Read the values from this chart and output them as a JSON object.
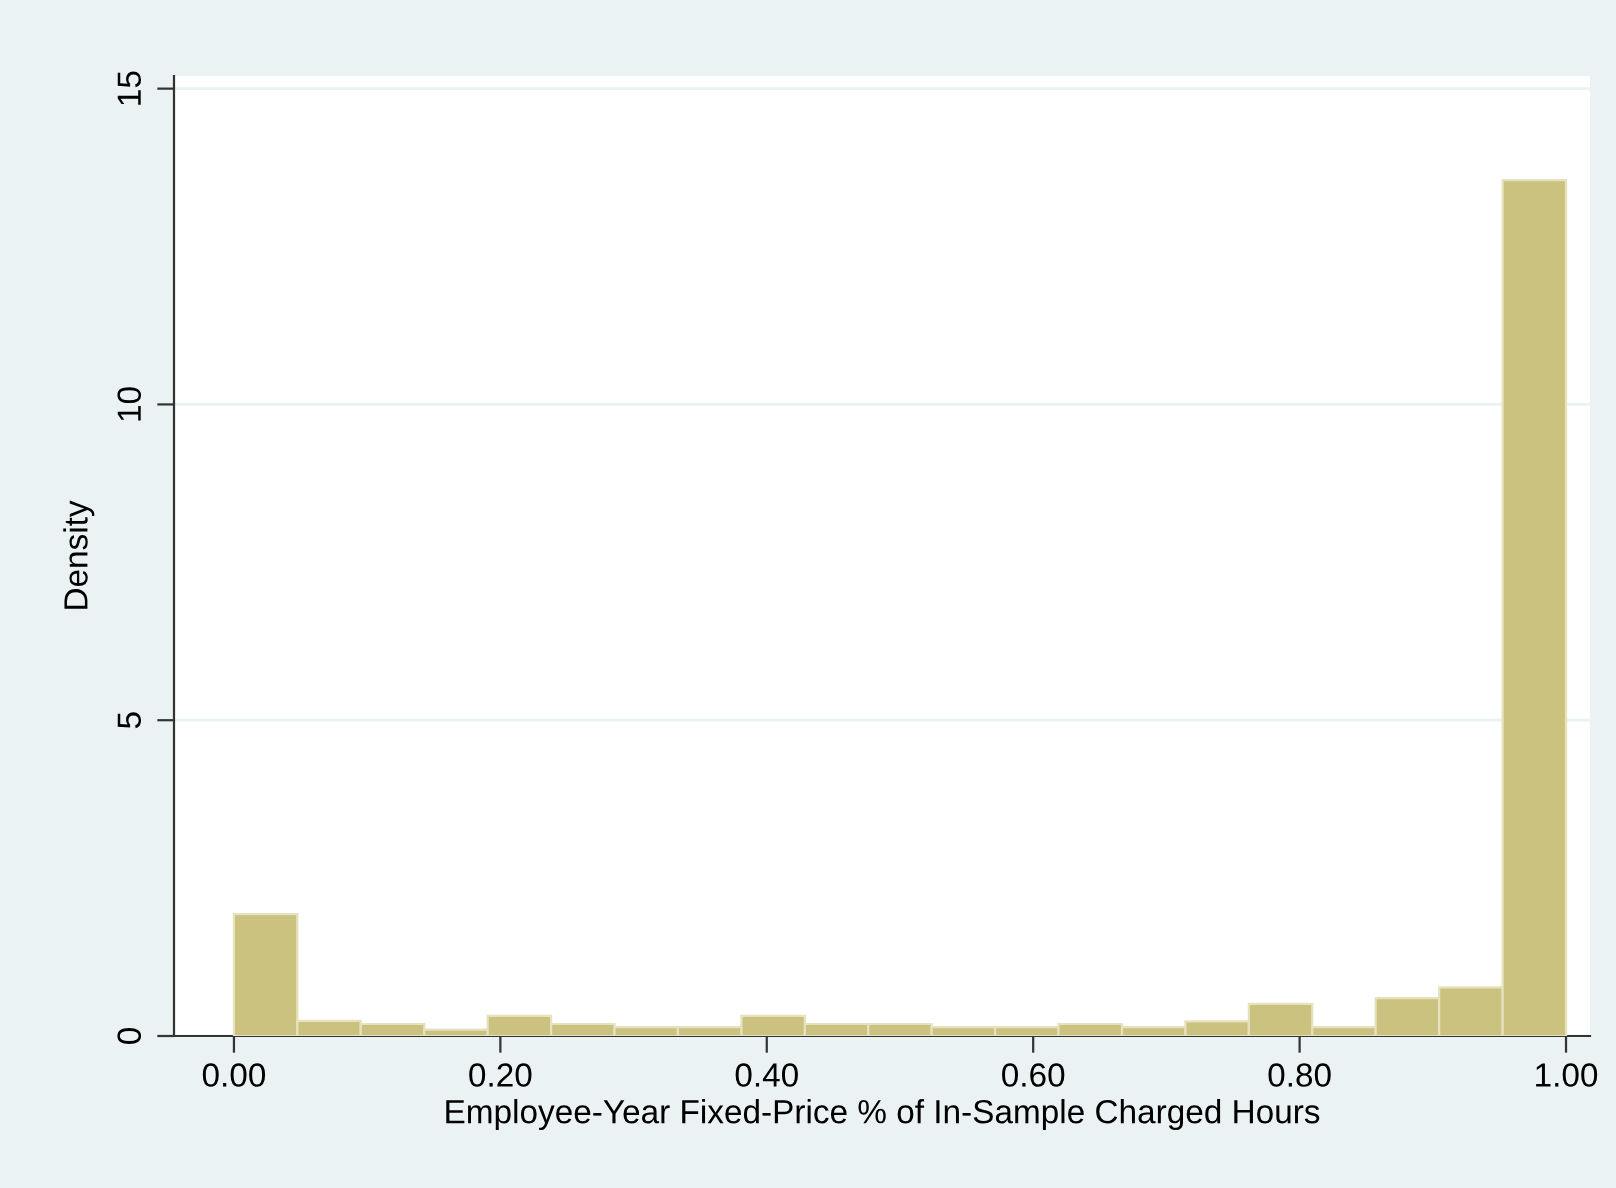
{
  "chart_data": {
    "type": "histogram",
    "xlabel": "Employee-Year Fixed-Price % of In-Sample Charged Hours",
    "ylabel": "Density",
    "bins": [
      0,
      0.0476,
      0.0952,
      0.1429,
      0.1905,
      0.2381,
      0.2857,
      0.3333,
      0.381,
      0.4286,
      0.4762,
      0.5238,
      0.5714,
      0.619,
      0.6667,
      0.7143,
      0.7619,
      0.8095,
      0.8571,
      0.9048,
      0.9524,
      1
    ],
    "values": [
      1.93,
      0.24,
      0.19,
      0.1,
      0.32,
      0.19,
      0.14,
      0.14,
      0.32,
      0.19,
      0.19,
      0.14,
      0.14,
      0.19,
      0.14,
      0.23,
      0.51,
      0.14,
      0.6,
      0.77,
      13.55
    ],
    "color": "#cac27e",
    "xlim": [
      -0.045,
      1.018
    ],
    "ylim": [
      0,
      15.2
    ],
    "xticks": [
      {
        "value": 0,
        "label": "0.00"
      },
      {
        "value": 0.2,
        "label": "0.20"
      },
      {
        "value": 0.4,
        "label": "0.40"
      },
      {
        "value": 0.6,
        "label": "0.60"
      },
      {
        "value": 0.8,
        "label": "0.80"
      },
      {
        "value": 1,
        "label": "1.00"
      }
    ],
    "yticks": [
      0,
      5,
      10,
      15
    ],
    "grid": "y"
  }
}
